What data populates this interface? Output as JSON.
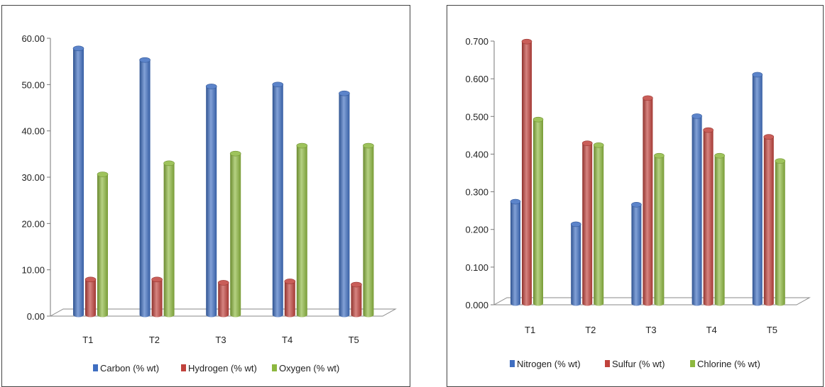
{
  "chart_data": [
    {
      "type": "bar",
      "categories": [
        "T1",
        "T2",
        "T3",
        "T4",
        "T5"
      ],
      "series": [
        {
          "name": "Carbon (%  wt)",
          "color": "#3f6ec1",
          "values": [
            57.5,
            55.0,
            49.3,
            49.7,
            47.8
          ]
        },
        {
          "name": "Hydrogen (% wt)",
          "color": "#c0423c",
          "values": [
            7.6,
            7.6,
            6.9,
            7.2,
            6.5
          ]
        },
        {
          "name": "Oxygen (%  wt)",
          "color": "#8db83f",
          "values": [
            30.3,
            32.7,
            34.8,
            36.5,
            36.5
          ]
        }
      ],
      "yticks": [
        "0.00",
        "10.00",
        "20.00",
        "30.00",
        "40.00",
        "50.00",
        "60.00"
      ],
      "ylim": [
        0,
        60
      ],
      "legend": "bottom",
      "grid": false
    },
    {
      "type": "bar",
      "categories": [
        "T1",
        "T2",
        "T3",
        "T4",
        "T5"
      ],
      "series": [
        {
          "name": "Nitrogen (% wt)",
          "color": "#3f6ec1",
          "values": [
            0.27,
            0.21,
            0.262,
            0.497,
            0.607
          ]
        },
        {
          "name": "Sulfur (% wt)",
          "color": "#c0423c",
          "values": [
            0.695,
            0.425,
            0.545,
            0.46,
            0.442
          ]
        },
        {
          "name": "Chlorine (% wt)",
          "color": "#8db83f",
          "values": [
            0.488,
            0.42,
            0.392,
            0.392,
            0.378
          ]
        }
      ],
      "yticks": [
        "0.000",
        "0.100",
        "0.200",
        "0.300",
        "0.400",
        "0.500",
        "0.600",
        "0.700"
      ],
      "ylim": [
        0,
        0.7
      ],
      "legend": "bottom",
      "grid": false
    }
  ]
}
